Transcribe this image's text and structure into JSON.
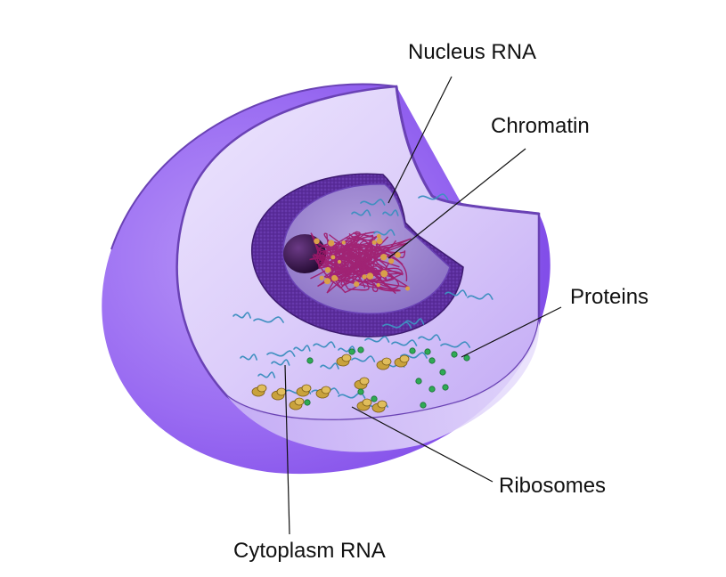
{
  "labels": {
    "nucleus_rna": "Nucleus RNA",
    "chromatin": "Chromatin",
    "proteins": "Proteins",
    "ribosomes": "Ribosomes",
    "cytoplasm_rna": "Cytoplasm RNA"
  },
  "colors": {
    "cell_outer": "#9a6cf2",
    "cell_face": "#e6dcfb",
    "membrane": "#6a42b5",
    "nuclear_envelope": "#5b2d9c",
    "nucleoplasm": "#9a82cf",
    "nucleolus": "#2e0f3e",
    "chromatin": "#a0186a",
    "rna": "#3f8fc0",
    "ribosome": "#c9a23c",
    "protein": "#2faa55",
    "leader": "#111111"
  }
}
